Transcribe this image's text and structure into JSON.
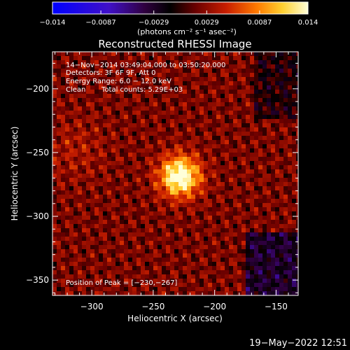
{
  "chart_data": {
    "type": "heatmap",
    "title": "Reconstructed RHESSI Image",
    "xlabel": "Heliocentric X (arcsec)",
    "ylabel": "Heliocentric Y (arcsec)",
    "xlim": [
      -332,
      -132
    ],
    "ylim": [
      -362,
      -171
    ],
    "xticks": [
      -300,
      -250,
      -200,
      -150
    ],
    "yticks": [
      -200,
      -250,
      -300,
      -350
    ],
    "xtick_labels": [
      "−300",
      "−250",
      "−200",
      "−150"
    ],
    "ytick_labels": [
      "−200",
      "−250",
      "−300",
      "−350"
    ],
    "colorbar": {
      "min": -0.014,
      "max": 0.014,
      "ticks": [
        -0.014,
        -0.0087,
        -0.0029,
        0.0029,
        0.0087,
        0.014
      ],
      "tick_labels": [
        "−0.014",
        "−0.0087",
        "−0.0029",
        "0.0029",
        "0.0087",
        "0.014"
      ],
      "units_label": "(photons cm⁻² s⁻¹ asec⁻²)"
    },
    "annotations": {
      "time_range": "14−Nov−2014 03:49:04.000 to 03:50:20.000",
      "detectors": "Detectors: 3F 6F 9F, Att 0",
      "energy_range": "Energy Range: 6.0 − 12.0 keV",
      "method": "Clean",
      "total_counts": "Total counts: 5.29E+03",
      "peak_position": "Position of Peak = [−230,−267]"
    },
    "peak": {
      "x": -230,
      "y": -267
    }
  },
  "footer": {
    "date": "19−May−2022 12:51"
  }
}
